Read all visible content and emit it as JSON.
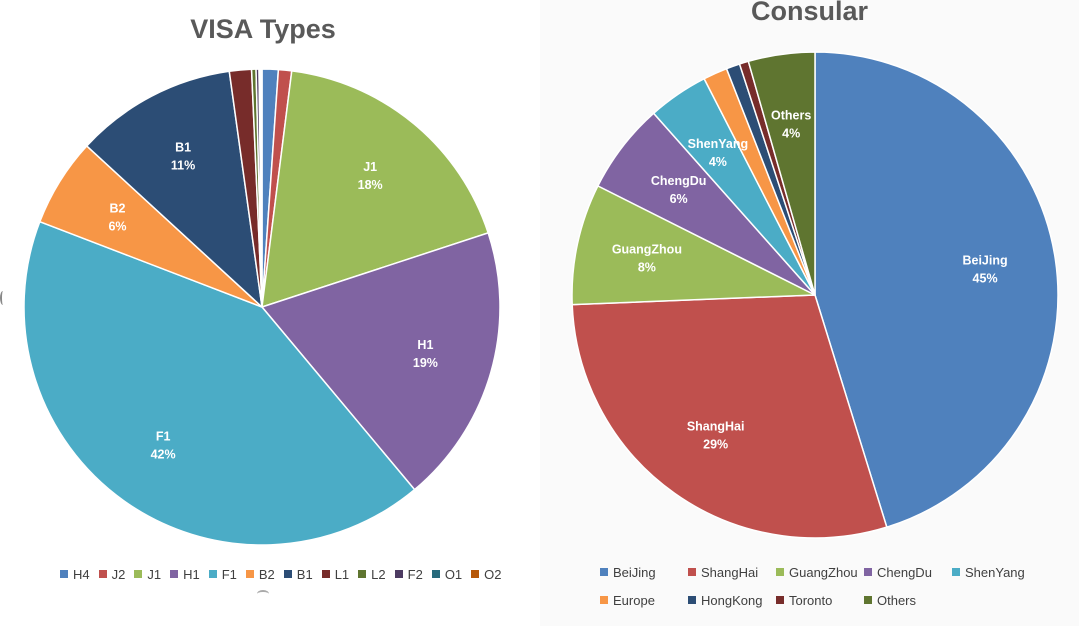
{
  "chart_data": [
    {
      "type": "pie",
      "title": "VISA Types",
      "categories": [
        "H4",
        "J2",
        "J1",
        "H1",
        "F1",
        "B2",
        "B1",
        "L1",
        "L2",
        "F2",
        "O1",
        "O2"
      ],
      "values": [
        1.1,
        0.9,
        18,
        19,
        42,
        6,
        11,
        1.5,
        0.3,
        0.2,
        0.1,
        0.1
      ],
      "data_labels": [
        {
          "category": "J1",
          "text": "18%"
        },
        {
          "category": "H1",
          "text": "19%"
        },
        {
          "category": "F1",
          "text": "42%"
        },
        {
          "category": "B2",
          "text": "6%"
        },
        {
          "category": "B1",
          "text": "11%"
        }
      ],
      "colors": [
        "#4f81bd",
        "#c0504d",
        "#9bbb59",
        "#8064a2",
        "#4bacc6",
        "#f79646",
        "#2c4d75",
        "#772c2a",
        "#5f7530",
        "#4d3b62",
        "#276a7c",
        "#b65708"
      ],
      "legend_position": "bottom"
    },
    {
      "type": "pie",
      "title": "Consular",
      "categories": [
        "BeiJing",
        "ShangHai",
        "GuangZhou",
        "ChengDu",
        "ShenYang",
        "Europe",
        "HongKong",
        "Toronto",
        "Others"
      ],
      "values": [
        45,
        29,
        8,
        6,
        4,
        1.6,
        0.9,
        0.6,
        4.4
      ],
      "data_labels": [
        {
          "category": "BeiJing",
          "text": "45%"
        },
        {
          "category": "ShangHai",
          "text": "29%"
        },
        {
          "category": "GuangZhou",
          "text": "8%"
        },
        {
          "category": "ChengDu",
          "text": "6%"
        },
        {
          "category": "ShenYang",
          "text": "4%"
        },
        {
          "category": "Others",
          "text": "4%"
        }
      ],
      "colors": [
        "#4f81bd",
        "#c0504d",
        "#9bbb59",
        "#8064a2",
        "#4bacc6",
        "#f79646",
        "#2c4d75",
        "#772c2a",
        "#5f7530"
      ],
      "legend_position": "bottom"
    }
  ]
}
